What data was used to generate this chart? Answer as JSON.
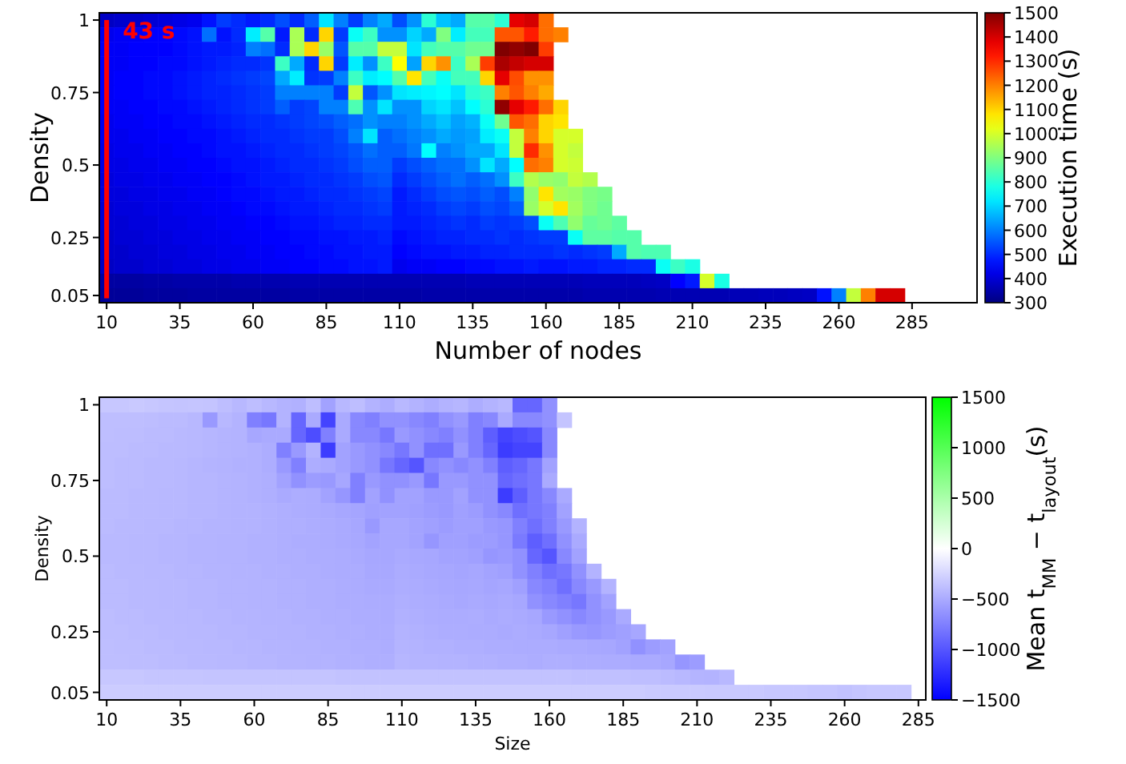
{
  "chart_data": [
    {
      "type": "heatmap",
      "xlabel": "Number of nodes",
      "ylabel": "Density",
      "clabel": "Execution time (s)",
      "categories": [
        "10",
        null,
        null,
        null,
        null,
        "35",
        null,
        null,
        null,
        null,
        "60",
        null,
        null,
        null,
        null,
        "85",
        null,
        null,
        null,
        null,
        "110",
        null,
        null,
        null,
        null,
        "135",
        null,
        null,
        null,
        null,
        "160",
        null,
        null,
        null,
        null,
        "185",
        null,
        null,
        null,
        null,
        "210",
        null,
        null,
        null,
        null,
        "235",
        null,
        null,
        null,
        null,
        "260",
        null,
        null,
        null,
        null,
        "285"
      ],
      "y_categories": [
        "1",
        null,
        null,
        null,
        null,
        "0.75",
        null,
        null,
        null,
        null,
        "0.5",
        null,
        null,
        null,
        null,
        "0.25",
        null,
        null,
        null,
        "0.05"
      ],
      "clim": [
        300,
        1500
      ],
      "cticks": [
        300,
        400,
        500,
        600,
        700,
        800,
        900,
        1000,
        1100,
        1200,
        1300,
        1400,
        1500
      ],
      "ref_lines": [
        {
          "axis": "x",
          "value": "10",
          "label": "43 s",
          "color": "#ff0000"
        }
      ],
      "cells": [
        [
          380,
          390,
          390,
          400,
          410,
          420,
          430,
          470,
          520,
          500,
          480,
          500,
          540,
          500,
          560,
          720,
          600,
          520,
          600,
          650,
          540,
          620,
          800,
          680,
          650,
          850,
          850,
          800,
          1380,
          1400,
          1220,
          null,
          null,
          null,
          null,
          null,
          null,
          null,
          null,
          null,
          null,
          null,
          null,
          null,
          null,
          null,
          null,
          null,
          null,
          null,
          null,
          null,
          null,
          null,
          null,
          null
        ],
        [
          430,
          440,
          440,
          450,
          450,
          460,
          470,
          580,
          470,
          500,
          730,
          850,
          480,
          950,
          500,
          1100,
          520,
          760,
          820,
          620,
          620,
          700,
          650,
          900,
          730,
          830,
          830,
          1250,
          1250,
          1320,
          1220,
          1200,
          null,
          null,
          null,
          null,
          null,
          null,
          null,
          null,
          null,
          null,
          null,
          null,
          null,
          null,
          null,
          null,
          null,
          null,
          null,
          null,
          null,
          null,
          null,
          null
        ],
        [
          440,
          440,
          450,
          450,
          450,
          460,
          470,
          480,
          480,
          490,
          600,
          580,
          500,
          950,
          1100,
          930,
          550,
          850,
          850,
          980,
          980,
          720,
          830,
          850,
          850,
          880,
          880,
          1500,
          1480,
          1500,
          1280,
          null,
          null,
          null,
          null,
          null,
          null,
          null,
          null,
          null,
          null,
          null,
          null,
          null,
          null,
          null,
          null,
          null,
          null,
          null,
          null,
          null,
          null,
          null,
          null,
          null
        ],
        [
          440,
          440,
          450,
          450,
          460,
          460,
          470,
          480,
          490,
          500,
          500,
          510,
          820,
          650,
          500,
          1100,
          520,
          730,
          620,
          820,
          1050,
          640,
          1100,
          1180,
          820,
          950,
          1280,
          1450,
          1420,
          1400,
          1400,
          null,
          null,
          null,
          null,
          null,
          null,
          null,
          null,
          null,
          null,
          null,
          null,
          null,
          null,
          null,
          null,
          null,
          null,
          null,
          null,
          null,
          null,
          null,
          null,
          null
        ],
        [
          440,
          450,
          450,
          460,
          460,
          470,
          480,
          490,
          500,
          510,
          520,
          530,
          650,
          730,
          510,
          520,
          600,
          820,
          730,
          750,
          850,
          1080,
          830,
          760,
          830,
          830,
          1100,
          1380,
          1260,
          1180,
          1180,
          null,
          null,
          null,
          null,
          null,
          null,
          null,
          null,
          null,
          null,
          null,
          null,
          null,
          null,
          null,
          null,
          null,
          null,
          null,
          null,
          null,
          null,
          null,
          null,
          null
        ],
        [
          440,
          450,
          450,
          460,
          460,
          470,
          480,
          490,
          490,
          500,
          510,
          520,
          600,
          600,
          600,
          600,
          520,
          980,
          550,
          620,
          720,
          730,
          740,
          750,
          720,
          800,
          820,
          1200,
          1250,
          1200,
          1150,
          null,
          null,
          null,
          null,
          null,
          null,
          null,
          null,
          null,
          null,
          null,
          null,
          null,
          null,
          null,
          null,
          null,
          null,
          null,
          null,
          null,
          null,
          null,
          null,
          null
        ],
        [
          440,
          440,
          450,
          450,
          460,
          460,
          470,
          480,
          490,
          500,
          510,
          520,
          560,
          520,
          530,
          600,
          600,
          840,
          620,
          720,
          620,
          620,
          700,
          720,
          680,
          750,
          800,
          1480,
          1380,
          1320,
          1220,
          1100,
          null,
          null,
          null,
          null,
          null,
          null,
          null,
          null,
          null,
          null,
          null,
          null,
          null,
          null,
          null,
          null,
          null,
          null,
          null,
          null,
          null,
          null,
          null,
          null
        ],
        [
          430,
          440,
          440,
          450,
          450,
          460,
          460,
          470,
          480,
          490,
          500,
          500,
          510,
          520,
          530,
          540,
          560,
          580,
          620,
          600,
          600,
          620,
          650,
          680,
          640,
          660,
          760,
          880,
          1250,
          1220,
          1100,
          1080,
          null,
          null,
          null,
          null,
          null,
          null,
          null,
          null,
          null,
          null,
          null,
          null,
          null,
          null,
          null,
          null,
          null,
          null,
          null,
          null,
          null,
          null,
          null,
          null
        ],
        [
          430,
          430,
          440,
          440,
          450,
          450,
          460,
          460,
          470,
          480,
          490,
          500,
          500,
          510,
          520,
          520,
          540,
          600,
          720,
          560,
          580,
          600,
          620,
          650,
          630,
          640,
          730,
          760,
          980,
          1200,
          1100,
          1000,
          1000,
          null,
          null,
          null,
          null,
          null,
          null,
          null,
          null,
          null,
          null,
          null,
          null,
          null,
          null,
          null,
          null,
          null,
          null,
          null,
          null,
          null,
          null,
          null
        ],
        [
          420,
          430,
          430,
          440,
          440,
          450,
          450,
          460,
          470,
          470,
          480,
          490,
          500,
          500,
          510,
          520,
          530,
          550,
          580,
          560,
          560,
          590,
          750,
          600,
          620,
          650,
          650,
          720,
          980,
          1300,
          1180,
          1000,
          980,
          null,
          null,
          null,
          null,
          null,
          null,
          null,
          null,
          null,
          null,
          null,
          null,
          null,
          null,
          null,
          null,
          null,
          null,
          null,
          null,
          null,
          null,
          null
        ],
        [
          420,
          420,
          430,
          430,
          440,
          440,
          450,
          450,
          460,
          470,
          470,
          480,
          490,
          500,
          500,
          510,
          520,
          540,
          560,
          560,
          520,
          540,
          560,
          580,
          580,
          620,
          720,
          650,
          750,
          1220,
          1200,
          1000,
          990,
          null,
          null,
          null,
          null,
          null,
          null,
          null,
          null,
          null,
          null,
          null,
          null,
          null,
          null,
          null,
          null,
          null,
          null,
          null,
          null,
          null,
          null,
          null
        ],
        [
          410,
          420,
          420,
          430,
          430,
          440,
          440,
          450,
          450,
          460,
          470,
          480,
          480,
          490,
          500,
          500,
          510,
          520,
          540,
          550,
          500,
          520,
          540,
          560,
          580,
          560,
          580,
          620,
          820,
          960,
          930,
          920,
          980,
          960,
          null,
          null,
          null,
          null,
          null,
          null,
          null,
          null,
          null,
          null,
          null,
          null,
          null,
          null,
          null,
          null,
          null,
          null,
          null,
          null,
          null,
          null
        ],
        [
          410,
          410,
          420,
          420,
          430,
          430,
          440,
          440,
          450,
          460,
          460,
          470,
          480,
          480,
          490,
          500,
          500,
          510,
          520,
          530,
          480,
          500,
          520,
          540,
          550,
          540,
          560,
          540,
          600,
          920,
          1080,
          940,
          930,
          900,
          890,
          null,
          null,
          null,
          null,
          null,
          null,
          null,
          null,
          null,
          null,
          null,
          null,
          null,
          null,
          null,
          null,
          null,
          null,
          null,
          null,
          null
        ],
        [
          400,
          410,
          410,
          420,
          420,
          430,
          430,
          440,
          440,
          450,
          460,
          460,
          470,
          480,
          480,
          490,
          500,
          500,
          510,
          520,
          480,
          490,
          500,
          520,
          530,
          520,
          540,
          530,
          560,
          930,
          1000,
          1080,
          940,
          900,
          880,
          null,
          null,
          null,
          null,
          null,
          null,
          null,
          null,
          null,
          null,
          null,
          null,
          null,
          null,
          null,
          null,
          null,
          null,
          null,
          null,
          null
        ],
        [
          400,
          400,
          410,
          410,
          420,
          420,
          430,
          430,
          440,
          440,
          450,
          450,
          460,
          470,
          470,
          480,
          490,
          490,
          500,
          500,
          480,
          480,
          490,
          500,
          510,
          500,
          520,
          510,
          520,
          540,
          760,
          840,
          920,
          870,
          880,
          860,
          null,
          null,
          null,
          null,
          null,
          null,
          null,
          null,
          null,
          null,
          null,
          null,
          null,
          null,
          null,
          null,
          null,
          null,
          null,
          null
        ],
        [
          390,
          400,
          400,
          410,
          410,
          420,
          420,
          430,
          430,
          440,
          440,
          450,
          450,
          460,
          460,
          470,
          470,
          480,
          480,
          490,
          460,
          470,
          480,
          490,
          490,
          500,
          500,
          510,
          500,
          510,
          520,
          520,
          760,
          860,
          860,
          850,
          850,
          null,
          null,
          null,
          null,
          null,
          null,
          null,
          null,
          null,
          null,
          null,
          null,
          null,
          null,
          null,
          null,
          null,
          null,
          null
        ],
        [
          390,
          390,
          400,
          400,
          410,
          410,
          420,
          420,
          430,
          430,
          440,
          440,
          450,
          450,
          460,
          460,
          470,
          470,
          480,
          480,
          450,
          460,
          470,
          470,
          480,
          480,
          490,
          490,
          500,
          500,
          500,
          510,
          500,
          510,
          520,
          650,
          850,
          840,
          840,
          null,
          null,
          null,
          null,
          null,
          null,
          null,
          null,
          null,
          null,
          null,
          null,
          null,
          null,
          null,
          null,
          null
        ],
        [
          380,
          390,
          390,
          400,
          400,
          410,
          410,
          420,
          420,
          430,
          430,
          440,
          440,
          450,
          450,
          460,
          460,
          470,
          470,
          480,
          430,
          440,
          440,
          450,
          450,
          460,
          460,
          470,
          470,
          480,
          470,
          470,
          480,
          480,
          490,
          490,
          500,
          500,
          760,
          820,
          780,
          null,
          null,
          null,
          null,
          null,
          null,
          null,
          null,
          null,
          null,
          null,
          null,
          null,
          null,
          null
        ],
        [
          340,
          340,
          340,
          345,
          345,
          350,
          350,
          350,
          350,
          355,
          355,
          355,
          355,
          360,
          360,
          360,
          360,
          360,
          360,
          360,
          360,
          360,
          360,
          360,
          360,
          365,
          365,
          365,
          365,
          365,
          365,
          365,
          365,
          370,
          370,
          370,
          370,
          375,
          380,
          450,
          480,
          1000,
          780,
          null,
          null,
          null,
          null,
          null,
          null,
          null,
          null,
          null,
          null,
          null,
          null,
          null
        ],
        [
          330,
          330,
          330,
          335,
          335,
          335,
          340,
          340,
          340,
          340,
          340,
          340,
          340,
          345,
          345,
          345,
          345,
          345,
          345,
          345,
          345,
          345,
          350,
          350,
          350,
          350,
          350,
          350,
          350,
          350,
          350,
          350,
          350,
          355,
          355,
          355,
          355,
          355,
          360,
          360,
          360,
          360,
          360,
          365,
          365,
          370,
          370,
          375,
          380,
          470,
          600,
          980,
          1200,
          1400,
          1400,
          null
        ]
      ]
    },
    {
      "type": "heatmap",
      "xlabel": "Size",
      "ylabel": "Density",
      "clabel": "Mean t$_{MM}$ − t$_{layout}$(s)",
      "categories": [
        "10",
        null,
        null,
        null,
        null,
        "35",
        null,
        null,
        null,
        null,
        "60",
        null,
        null,
        null,
        null,
        "85",
        null,
        null,
        null,
        null,
        "110",
        null,
        null,
        null,
        null,
        "135",
        null,
        null,
        null,
        null,
        "160",
        null,
        null,
        null,
        null,
        "185",
        null,
        null,
        null,
        null,
        "210",
        null,
        null,
        null,
        null,
        "235",
        null,
        null,
        null,
        null,
        "260",
        null,
        null,
        null,
        null,
        "285"
      ],
      "y_categories": [
        "1",
        null,
        null,
        null,
        null,
        "0.75",
        null,
        null,
        null,
        null,
        "0.5",
        null,
        null,
        null,
        null,
        "0.25",
        null,
        null,
        null,
        "0.05"
      ],
      "clim": [
        -1500,
        1500
      ],
      "cticks": [
        {
          "value": -1500,
          "label": "−1500"
        },
        {
          "value": -1000,
          "label": "−1000"
        },
        {
          "value": -500,
          "label": "−500"
        },
        0,
        500,
        1000,
        1500
      ],
      "cells": [
        [
          -330,
          -330,
          -320,
          -330,
          -340,
          -350,
          -340,
          -350,
          -380,
          -420,
          -380,
          -420,
          -450,
          -460,
          -380,
          -550,
          -420,
          -380,
          -450,
          -480,
          -420,
          -450,
          -480,
          -450,
          -430,
          -480,
          -450,
          -420,
          -900,
          -900,
          -650,
          null,
          null,
          null,
          null,
          null,
          null,
          null,
          null,
          null,
          null,
          null,
          null,
          null,
          null,
          null,
          null,
          null,
          null,
          null,
          null,
          null,
          null,
          null,
          null,
          null
        ],
        [
          -380,
          -380,
          -380,
          -390,
          -400,
          -400,
          -420,
          -600,
          -420,
          -450,
          -750,
          -800,
          -450,
          -900,
          -500,
          -1100,
          -500,
          -700,
          -750,
          -650,
          -650,
          -700,
          -750,
          -650,
          -600,
          -750,
          -700,
          -500,
          -700,
          -700,
          -650,
          -350,
          null,
          null,
          null,
          null,
          null,
          null,
          null,
          null,
          null,
          null,
          null,
          null,
          null,
          null,
          null,
          null,
          null,
          null,
          null,
          null,
          null,
          null,
          null,
          null
        ],
        [
          -380,
          -390,
          -390,
          -400,
          -400,
          -410,
          -420,
          -430,
          -440,
          -450,
          -520,
          -500,
          -500,
          -900,
          -1050,
          -750,
          -500,
          -700,
          -700,
          -800,
          -600,
          -650,
          -700,
          -750,
          -650,
          -750,
          -950,
          -1100,
          -1050,
          -1000,
          -700,
          null,
          null,
          null,
          null,
          null,
          null,
          null,
          null,
          null,
          null,
          null,
          null,
          null,
          null,
          null,
          null,
          null,
          null,
          null,
          null,
          null,
          null,
          null,
          null,
          null
        ],
        [
          -390,
          -390,
          -400,
          -400,
          -410,
          -410,
          -420,
          -430,
          -440,
          -450,
          -460,
          -480,
          -750,
          -600,
          -450,
          -1150,
          -550,
          -600,
          -650,
          -700,
          -800,
          -650,
          -850,
          -850,
          -600,
          -750,
          -900,
          -1150,
          -1100,
          -1100,
          -700,
          null,
          null,
          null,
          null,
          null,
          null,
          null,
          null,
          null,
          null,
          null,
          null,
          null,
          null,
          null,
          null,
          null,
          null,
          null,
          null,
          null,
          null,
          null,
          null,
          null
        ],
        [
          -390,
          -400,
          -400,
          -410,
          -410,
          -420,
          -430,
          -440,
          -450,
          -460,
          -460,
          -480,
          -600,
          -750,
          -480,
          -500,
          -550,
          -600,
          -650,
          -800,
          -900,
          -1000,
          -700,
          -650,
          -700,
          -650,
          -750,
          -950,
          -900,
          -800,
          -550,
          null,
          null,
          null,
          null,
          null,
          null,
          null,
          null,
          null,
          null,
          null,
          null,
          null,
          null,
          null,
          null,
          null,
          null,
          null,
          null,
          null,
          null,
          null,
          null,
          null
        ],
        [
          -390,
          -400,
          -400,
          -410,
          -410,
          -420,
          -430,
          -430,
          -440,
          -450,
          -460,
          -470,
          -550,
          -650,
          -580,
          -600,
          -520,
          -750,
          -600,
          -650,
          -650,
          -600,
          -800,
          -600,
          -600,
          -650,
          -650,
          -900,
          -850,
          -800,
          -500,
          null,
          null,
          null,
          null,
          null,
          null,
          null,
          null,
          null,
          null,
          null,
          null,
          null,
          null,
          null,
          null,
          null,
          null,
          null,
          null,
          null,
          null,
          null,
          null,
          null
        ],
        [
          -400,
          -400,
          -410,
          -410,
          -420,
          -420,
          -430,
          -430,
          -440,
          -450,
          -460,
          -470,
          -500,
          -480,
          -490,
          -550,
          -620,
          -750,
          -550,
          -650,
          -550,
          -550,
          -600,
          -600,
          -550,
          -650,
          -650,
          -1150,
          -950,
          -800,
          -700,
          -500,
          null,
          null,
          null,
          null,
          null,
          null,
          null,
          null,
          null,
          null,
          null,
          null,
          null,
          null,
          null,
          null,
          null,
          null,
          null,
          null,
          null,
          null,
          null,
          null
        ],
        [
          -400,
          -400,
          -410,
          -410,
          -420,
          -420,
          -430,
          -430,
          -440,
          -450,
          -450,
          -460,
          -470,
          -480,
          -490,
          -500,
          -520,
          -530,
          -560,
          -550,
          -550,
          -560,
          -580,
          -600,
          -560,
          -580,
          -650,
          -700,
          -850,
          -800,
          -750,
          -550,
          null,
          null,
          null,
          null,
          null,
          null,
          null,
          null,
          null,
          null,
          null,
          null,
          null,
          null,
          null,
          null,
          null,
          null,
          null,
          null,
          null,
          null,
          null,
          null
        ],
        [
          -400,
          -410,
          -410,
          -420,
          -420,
          -430,
          -430,
          -440,
          -440,
          -450,
          -450,
          -460,
          -470,
          -470,
          -480,
          -490,
          -500,
          -520,
          -600,
          -520,
          -520,
          -540,
          -560,
          -580,
          -560,
          -560,
          -600,
          -620,
          -750,
          -850,
          -750,
          -600,
          -450,
          null,
          null,
          null,
          null,
          null,
          null,
          null,
          null,
          null,
          null,
          null,
          null,
          null,
          null,
          null,
          null,
          null,
          null,
          null,
          null,
          null,
          null,
          null
        ],
        [
          -410,
          -410,
          -420,
          -420,
          -430,
          -430,
          -440,
          -440,
          -450,
          -450,
          -460,
          -460,
          -470,
          -480,
          -480,
          -490,
          -500,
          -510,
          -540,
          -520,
          -520,
          -540,
          -620,
          -560,
          -560,
          -580,
          -580,
          -620,
          -780,
          -950,
          -850,
          -650,
          -500,
          null,
          null,
          null,
          null,
          null,
          null,
          null,
          null,
          null,
          null,
          null,
          null,
          null,
          null,
          null,
          null,
          null,
          null,
          null,
          null,
          null,
          null,
          null
        ],
        [
          -410,
          -410,
          -420,
          -420,
          -430,
          -430,
          -440,
          -440,
          -450,
          -450,
          -460,
          -460,
          -470,
          -470,
          -480,
          -480,
          -490,
          -500,
          -520,
          -520,
          -500,
          -510,
          -520,
          -540,
          -540,
          -560,
          -620,
          -600,
          -650,
          -900,
          -1000,
          -700,
          -550,
          null,
          null,
          null,
          null,
          null,
          null,
          null,
          null,
          null,
          null,
          null,
          null,
          null,
          null,
          null,
          null,
          null,
          null,
          null,
          null,
          null,
          null,
          null
        ],
        [
          -400,
          -410,
          -410,
          -420,
          -420,
          -430,
          -430,
          -440,
          -440,
          -450,
          -450,
          -460,
          -460,
          -470,
          -470,
          -480,
          -490,
          -490,
          -510,
          -510,
          -490,
          -500,
          -510,
          -520,
          -530,
          -520,
          -540,
          -560,
          -650,
          -750,
          -850,
          -800,
          -650,
          -450,
          null,
          null,
          null,
          null,
          null,
          null,
          null,
          null,
          null,
          null,
          null,
          null,
          null,
          null,
          null,
          null,
          null,
          null,
          null,
          null,
          null,
          null
        ],
        [
          -400,
          -400,
          -410,
          -410,
          -420,
          -420,
          -430,
          -430,
          -440,
          -440,
          -450,
          -450,
          -460,
          -460,
          -470,
          -470,
          -480,
          -490,
          -500,
          -500,
          -480,
          -490,
          -500,
          -510,
          -520,
          -510,
          -530,
          -520,
          -560,
          -700,
          -750,
          -850,
          -700,
          -600,
          -450,
          null,
          null,
          null,
          null,
          null,
          null,
          null,
          null,
          null,
          null,
          null,
          null,
          null,
          null,
          null,
          null,
          null,
          null,
          null,
          null,
          null
        ],
        [
          -400,
          -400,
          -410,
          -410,
          -420,
          -420,
          -430,
          -430,
          -440,
          -440,
          -450,
          -450,
          -460,
          -460,
          -470,
          -470,
          -480,
          -480,
          -490,
          -490,
          -470,
          -480,
          -490,
          -500,
          -510,
          -500,
          -510,
          -500,
          -520,
          -650,
          -700,
          -750,
          -800,
          -650,
          -550,
          null,
          null,
          null,
          null,
          null,
          null,
          null,
          null,
          null,
          null,
          null,
          null,
          null,
          null,
          null,
          null,
          null,
          null,
          null,
          null,
          null
        ],
        [
          -390,
          -400,
          -400,
          -410,
          -410,
          -420,
          -420,
          -430,
          -430,
          -440,
          -440,
          -450,
          -450,
          -460,
          -460,
          -470,
          -470,
          -480,
          -480,
          -490,
          -460,
          -470,
          -480,
          -490,
          -490,
          -480,
          -500,
          -490,
          -500,
          -520,
          -600,
          -650,
          -700,
          -650,
          -600,
          -500,
          null,
          null,
          null,
          null,
          null,
          null,
          null,
          null,
          null,
          null,
          null,
          null,
          null,
          null,
          null,
          null,
          null,
          null,
          null,
          null
        ],
        [
          -390,
          -390,
          -400,
          -400,
          -410,
          -410,
          -420,
          -420,
          -430,
          -430,
          -440,
          -440,
          -450,
          -450,
          -460,
          -460,
          -470,
          -470,
          -480,
          -480,
          -450,
          -460,
          -470,
          -480,
          -480,
          -490,
          -490,
          -500,
          -490,
          -500,
          -520,
          -560,
          -600,
          -620,
          -580,
          -560,
          -520,
          null,
          null,
          null,
          null,
          null,
          null,
          null,
          null,
          null,
          null,
          null,
          null,
          null,
          null,
          null,
          null,
          null,
          null,
          null
        ],
        [
          -380,
          -390,
          -390,
          -400,
          -400,
          -410,
          -410,
          -420,
          -420,
          -430,
          -430,
          -440,
          -440,
          -450,
          -450,
          -460,
          -460,
          -470,
          -470,
          -480,
          -440,
          -450,
          -460,
          -460,
          -470,
          -470,
          -480,
          -480,
          -490,
          -490,
          -490,
          -500,
          -500,
          -510,
          -520,
          -550,
          -650,
          -580,
          -550,
          null,
          null,
          null,
          null,
          null,
          null,
          null,
          null,
          null,
          null,
          null,
          null,
          null,
          null,
          null,
          null,
          null
        ],
        [
          -380,
          -380,
          -390,
          -390,
          -400,
          -400,
          -410,
          -410,
          -420,
          -420,
          -430,
          -430,
          -440,
          -440,
          -450,
          -450,
          -460,
          -460,
          -470,
          -470,
          -430,
          -440,
          -440,
          -450,
          -450,
          -460,
          -460,
          -470,
          -470,
          -480,
          -470,
          -470,
          -480,
          -480,
          -490,
          -490,
          -500,
          -500,
          -520,
          -620,
          -580,
          null,
          null,
          null,
          null,
          null,
          null,
          null,
          null,
          null,
          null,
          null,
          null,
          null,
          null,
          null
        ],
        [
          -330,
          -330,
          -330,
          -340,
          -340,
          -340,
          -340,
          -350,
          -350,
          -350,
          -350,
          -350,
          -350,
          -350,
          -350,
          -350,
          -360,
          -360,
          -360,
          -360,
          -360,
          -360,
          -360,
          -360,
          -360,
          -360,
          -360,
          -360,
          -360,
          -360,
          -360,
          -360,
          -370,
          -370,
          -370,
          -370,
          -380,
          -380,
          -400,
          -420,
          -440,
          -450,
          -420,
          null,
          null,
          null,
          null,
          null,
          null,
          null,
          null,
          null,
          null,
          null,
          null,
          null
        ],
        [
          -300,
          -300,
          -300,
          -300,
          -300,
          -300,
          -300,
          -300,
          -300,
          -300,
          -300,
          -300,
          -300,
          -300,
          -300,
          -300,
          -300,
          -300,
          -300,
          -300,
          -300,
          -300,
          -300,
          -300,
          -300,
          -300,
          -300,
          -300,
          -300,
          -300,
          -300,
          -300,
          -300,
          -300,
          -300,
          -300,
          -300,
          -310,
          -310,
          -310,
          -310,
          -320,
          -320,
          -320,
          -320,
          -330,
          -330,
          -330,
          -340,
          -340,
          -360,
          -340,
          -330,
          -330,
          -330,
          null
        ]
      ]
    }
  ]
}
